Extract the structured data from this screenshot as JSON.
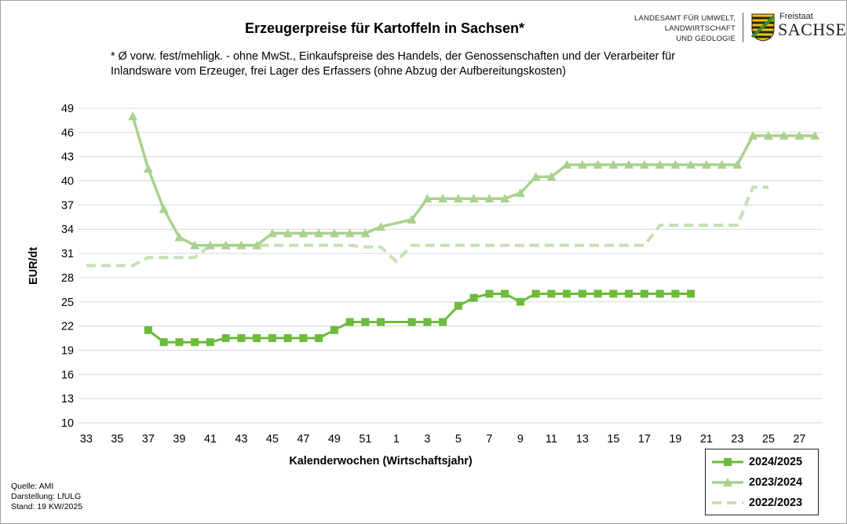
{
  "header": {
    "title": "Erzeugerpreise für Kartoffeln in Sachsen*",
    "subtitle_line1": "* Ø vorw. fest/mehligk. - ohne MwSt., Einkaufspreise des Handels, der Genossenschaften und der Verarbeiter für",
    "subtitle_line2": "Inlandsware vom Erzeuger, frei Lager des Erfassers (ohne Abzug der Aufbereitungskosten)"
  },
  "logo": {
    "line1": "LANDESAMT FÜR UMWELT,",
    "line2": "LANDWIRTSCHAFT",
    "line3": "UND GEOLOGIE",
    "freistaat": "Freistaat",
    "sachsen": "SACHSEN"
  },
  "footer": {
    "source": "Quelle: AMI",
    "made_by": "Darstellung: LfULG",
    "status": "Stand: 19 KW/2025"
  },
  "colors": {
    "series_2024": "#6cbb3c",
    "series_2023": "#a9d18e",
    "series_2022": "#c5e0b4",
    "grid": "#d9d9d9"
  },
  "chart_data": {
    "type": "line",
    "title": "Erzeugerpreise für Kartoffeln in Sachsen*",
    "xlabel": "Kalenderwochen (Wirtschaftsjahr)",
    "ylabel": "EUR/dt",
    "ylim": [
      10,
      49
    ],
    "yticks": [
      10,
      13,
      16,
      19,
      22,
      25,
      28,
      31,
      34,
      37,
      40,
      43,
      46,
      49
    ],
    "x_categories": [
      "33",
      "34",
      "35",
      "36",
      "37",
      "38",
      "39",
      "40",
      "41",
      "42",
      "43",
      "44",
      "45",
      "46",
      "47",
      "48",
      "49",
      "50",
      "51",
      "52",
      "1",
      "2",
      "3",
      "4",
      "5",
      "6",
      "7",
      "8",
      "9",
      "10",
      "11",
      "12",
      "13",
      "14",
      "15",
      "16",
      "17",
      "18",
      "19",
      "20",
      "21",
      "22",
      "23",
      "24",
      "25",
      "26",
      "27",
      "28"
    ],
    "xtick_labels": [
      "33",
      "35",
      "37",
      "39",
      "41",
      "43",
      "45",
      "47",
      "49",
      "51",
      "1",
      "3",
      "5",
      "7",
      "9",
      "11",
      "13",
      "15",
      "17",
      "19",
      "21",
      "23",
      "25",
      "27"
    ],
    "grid": "horizontal",
    "legend_position": "bottom-right",
    "series": [
      {
        "name": "2024/2025",
        "marker": "square",
        "style": "solid",
        "points": [
          [
            "37",
            21.5
          ],
          [
            "38",
            20
          ],
          [
            "39",
            20
          ],
          [
            "40",
            20
          ],
          [
            "41",
            20
          ],
          [
            "42",
            20.5
          ],
          [
            "43",
            20.5
          ],
          [
            "44",
            20.5
          ],
          [
            "45",
            20.5
          ],
          [
            "46",
            20.5
          ],
          [
            "47",
            20.5
          ],
          [
            "48",
            20.5
          ],
          [
            "49",
            21.5
          ],
          [
            "50",
            22.5
          ],
          [
            "51",
            22.5
          ],
          [
            "52",
            22.5
          ],
          [
            "2",
            22.5
          ],
          [
            "3",
            22.5
          ],
          [
            "4",
            22.5
          ],
          [
            "5",
            24.5
          ],
          [
            "6",
            25.5
          ],
          [
            "7",
            26
          ],
          [
            "8",
            26
          ],
          [
            "9",
            25
          ],
          [
            "10",
            26
          ],
          [
            "11",
            26
          ],
          [
            "12",
            26
          ],
          [
            "13",
            26
          ],
          [
            "14",
            26
          ],
          [
            "15",
            26
          ],
          [
            "16",
            26
          ],
          [
            "17",
            26
          ],
          [
            "18",
            26
          ],
          [
            "19",
            26
          ],
          [
            "20",
            26
          ]
        ]
      },
      {
        "name": "2023/2024",
        "marker": "triangle",
        "style": "solid",
        "points": [
          [
            "36",
            48
          ],
          [
            "37",
            41.5
          ],
          [
            "38",
            36.5
          ],
          [
            "39",
            33
          ],
          [
            "40",
            32
          ],
          [
            "41",
            32
          ],
          [
            "42",
            32
          ],
          [
            "43",
            32
          ],
          [
            "44",
            32
          ],
          [
            "45",
            33.5
          ],
          [
            "46",
            33.5
          ],
          [
            "47",
            33.5
          ],
          [
            "48",
            33.5
          ],
          [
            "49",
            33.5
          ],
          [
            "50",
            33.5
          ],
          [
            "51",
            33.5
          ],
          [
            "52",
            34.3
          ],
          [
            "2",
            35.2
          ],
          [
            "3",
            37.8
          ],
          [
            "4",
            37.8
          ],
          [
            "5",
            37.8
          ],
          [
            "6",
            37.8
          ],
          [
            "7",
            37.8
          ],
          [
            "8",
            37.8
          ],
          [
            "9",
            38.5
          ],
          [
            "10",
            40.5
          ],
          [
            "11",
            40.5
          ],
          [
            "12",
            42
          ],
          [
            "13",
            42
          ],
          [
            "14",
            42
          ],
          [
            "15",
            42
          ],
          [
            "16",
            42
          ],
          [
            "17",
            42
          ],
          [
            "18",
            42
          ],
          [
            "19",
            42
          ],
          [
            "20",
            42
          ],
          [
            "21",
            42
          ],
          [
            "22",
            42
          ],
          [
            "23",
            42
          ],
          [
            "24",
            45.6
          ],
          [
            "25",
            45.6
          ],
          [
            "26",
            45.6
          ],
          [
            "27",
            45.6
          ],
          [
            "28",
            45.6
          ]
        ]
      },
      {
        "name": "2022/2023",
        "marker": "none",
        "style": "dashed",
        "points": [
          [
            "33",
            29.5
          ],
          [
            "34",
            29.5
          ],
          [
            "35",
            29.5
          ],
          [
            "36",
            29.5
          ],
          [
            "37",
            30.5
          ],
          [
            "38",
            30.5
          ],
          [
            "39",
            30.5
          ],
          [
            "40",
            30.5
          ],
          [
            "41",
            32
          ],
          [
            "42",
            32
          ],
          [
            "43",
            32
          ],
          [
            "44",
            32
          ],
          [
            "45",
            32
          ],
          [
            "46",
            32
          ],
          [
            "47",
            32
          ],
          [
            "48",
            32
          ],
          [
            "49",
            32
          ],
          [
            "50",
            32
          ],
          [
            "51",
            31.8
          ],
          [
            "52",
            31.8
          ],
          [
            "1",
            30
          ],
          [
            "2",
            32
          ],
          [
            "3",
            32
          ],
          [
            "4",
            32
          ],
          [
            "5",
            32
          ],
          [
            "6",
            32
          ],
          [
            "7",
            32
          ],
          [
            "8",
            32
          ],
          [
            "9",
            32
          ],
          [
            "10",
            32
          ],
          [
            "11",
            32
          ],
          [
            "12",
            32
          ],
          [
            "13",
            32
          ],
          [
            "14",
            32
          ],
          [
            "15",
            32
          ],
          [
            "16",
            32
          ],
          [
            "17",
            32
          ],
          [
            "18",
            34.5
          ],
          [
            "19",
            34.5
          ],
          [
            "20",
            34.5
          ],
          [
            "21",
            34.5
          ],
          [
            "22",
            34.5
          ],
          [
            "23",
            34.5
          ],
          [
            "24",
            39.2
          ],
          [
            "25",
            39.2
          ]
        ]
      }
    ]
  }
}
